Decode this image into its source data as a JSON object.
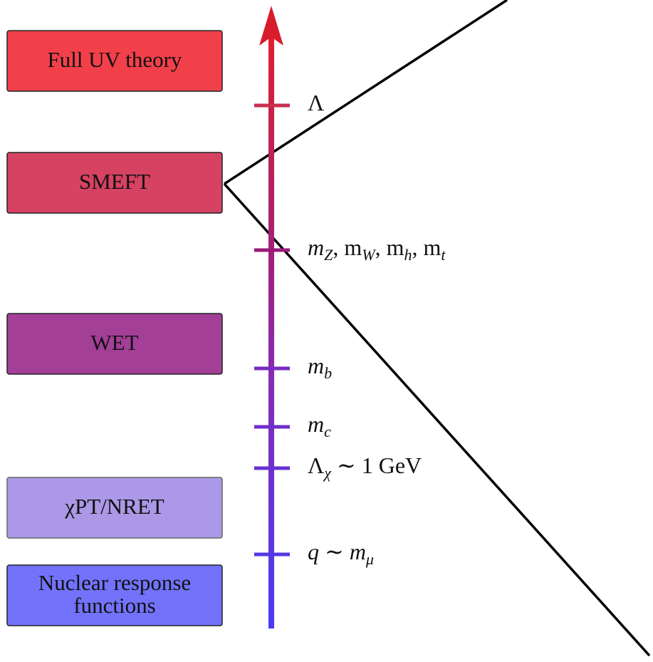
{
  "boxes": [
    {
      "lines": [
        "Full UV theory"
      ]
    },
    {
      "lines": [
        "SMEFT"
      ]
    },
    {
      "lines": [
        "WET"
      ]
    },
    {
      "lines": [
        "χPT/NRET"
      ]
    },
    {
      "lines": [
        "Nuclear response",
        "functions"
      ]
    }
  ],
  "scales": [
    {
      "label": [
        {
          "text": "Λ"
        }
      ]
    },
    {
      "label": [
        {
          "text": "m"
        },
        {
          "sub": "Z"
        },
        {
          "text": ", m"
        },
        {
          "sub": "W"
        },
        {
          "text": ", m"
        },
        {
          "sub": "h"
        },
        {
          "text": ", m"
        },
        {
          "sub": "t"
        }
      ]
    },
    {
      "label": [
        {
          "text": "m"
        },
        {
          "sub": "b"
        }
      ]
    },
    {
      "label": [
        {
          "text": "m"
        },
        {
          "sub": "c"
        }
      ]
    },
    {
      "label": [
        {
          "text": "Λ"
        },
        {
          "sub": "χ"
        },
        {
          "text": " ∼ 1 GeV"
        }
      ]
    },
    {
      "label": [
        {
          "text": "q ∼ m"
        },
        {
          "sub": "μ"
        }
      ]
    }
  ]
}
